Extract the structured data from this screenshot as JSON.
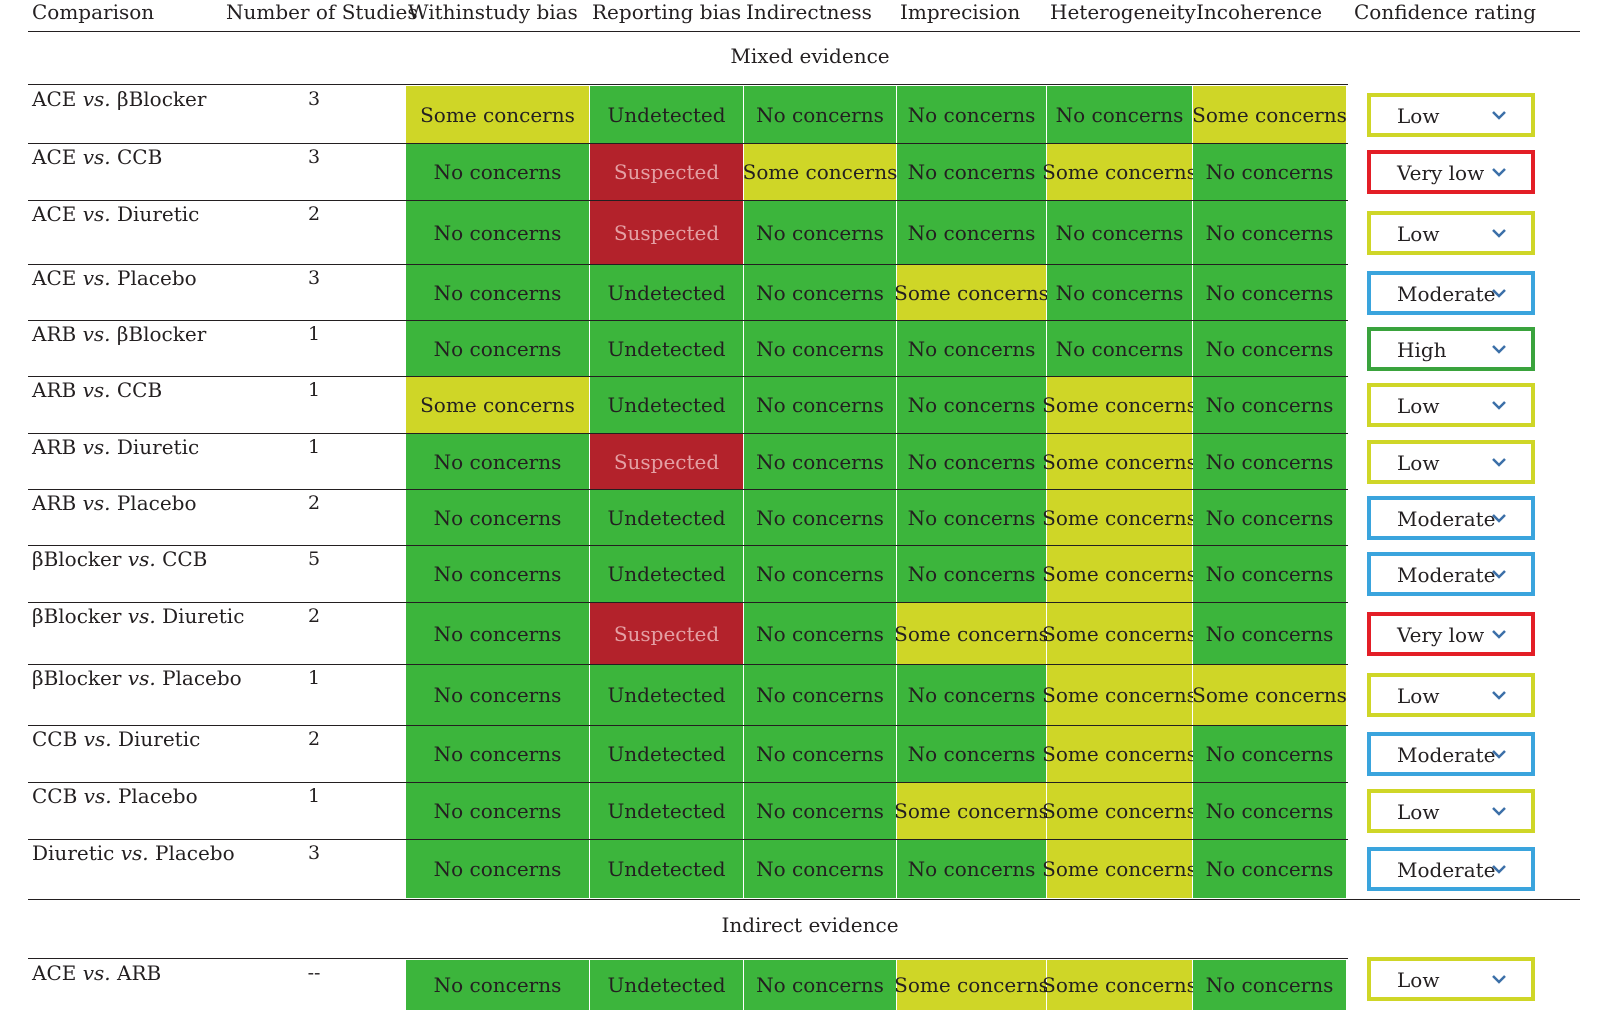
{
  "headers": {
    "comparison": "Comparison",
    "studies": "Number of Studies",
    "within": "Withinstudy bias",
    "reporting": "Reporting bias",
    "indirectness": "Indirectness",
    "imprecision": "Imprecision",
    "heterogeneity": "Heterogeneity",
    "incoherence": "Incoherence",
    "confidence": "Confidence rating"
  },
  "sections": {
    "mixed": "Mixed evidence",
    "indirect": "Indirect evidence"
  },
  "rows": [
    {
      "a": "ACE",
      "vs": "vs.",
      "b": "βBlocker",
      "n": "3",
      "cells": [
        [
          "Some concerns",
          "yellow"
        ],
        [
          "Undetected",
          "green"
        ],
        [
          "No concerns",
          "green"
        ],
        [
          "No concerns",
          "green"
        ],
        [
          "No concerns",
          "green"
        ],
        [
          "Some concerns",
          "yellow"
        ]
      ],
      "rating": "Low",
      "rating_color": "#cfd627"
    },
    {
      "a": "ACE",
      "vs": "vs.",
      "b": "CCB",
      "n": "3",
      "cells": [
        [
          "No concerns",
          "green"
        ],
        [
          "Suspected",
          "red"
        ],
        [
          "Some concerns",
          "yellow"
        ],
        [
          "No concerns",
          "green"
        ],
        [
          "Some concerns",
          "yellow"
        ],
        [
          "No concerns",
          "green"
        ]
      ],
      "rating": "Very low",
      "rating_color": "#e31e26"
    },
    {
      "a": "ACE",
      "vs": "vs.",
      "b": "Diuretic",
      "n": "2",
      "cells": [
        [
          "No concerns",
          "green"
        ],
        [
          "Suspected",
          "red"
        ],
        [
          "No concerns",
          "green"
        ],
        [
          "No concerns",
          "green"
        ],
        [
          "No concerns",
          "green"
        ],
        [
          "No concerns",
          "green"
        ]
      ],
      "rating": "Low",
      "rating_color": "#cfd627"
    },
    {
      "a": "ACE",
      "vs": "vs.",
      "b": "Placebo",
      "n": "3",
      "cells": [
        [
          "No concerns",
          "green"
        ],
        [
          "Undetected",
          "green"
        ],
        [
          "No concerns",
          "green"
        ],
        [
          "Some concerns",
          "yellow"
        ],
        [
          "No concerns",
          "green"
        ],
        [
          "No concerns",
          "green"
        ]
      ],
      "rating": "Moderate",
      "rating_color": "#3aa4dd"
    },
    {
      "a": "ARB",
      "vs": "vs.",
      "b": "βBlocker",
      "n": "1",
      "cells": [
        [
          "No concerns",
          "green"
        ],
        [
          "Undetected",
          "green"
        ],
        [
          "No concerns",
          "green"
        ],
        [
          "No concerns",
          "green"
        ],
        [
          "No concerns",
          "green"
        ],
        [
          "No concerns",
          "green"
        ]
      ],
      "rating": "High",
      "rating_color": "#3aa33d"
    },
    {
      "a": "ARB",
      "vs": "vs.",
      "b": "CCB",
      "n": "1",
      "cells": [
        [
          "Some concerns",
          "yellow"
        ],
        [
          "Undetected",
          "green"
        ],
        [
          "No concerns",
          "green"
        ],
        [
          "No concerns",
          "green"
        ],
        [
          "Some concerns",
          "yellow"
        ],
        [
          "No concerns",
          "green"
        ]
      ],
      "rating": "Low",
      "rating_color": "#cfd627"
    },
    {
      "a": "ARB",
      "vs": "vs.",
      "b": "Diuretic",
      "n": "1",
      "cells": [
        [
          "No concerns",
          "green"
        ],
        [
          "Suspected",
          "red"
        ],
        [
          "No concerns",
          "green"
        ],
        [
          "No concerns",
          "green"
        ],
        [
          "Some concerns",
          "yellow"
        ],
        [
          "No concerns",
          "green"
        ]
      ],
      "rating": "Low",
      "rating_color": "#cfd627"
    },
    {
      "a": "ARB",
      "vs": "vs.",
      "b": "Placebo",
      "n": "2",
      "cells": [
        [
          "No concerns",
          "green"
        ],
        [
          "Undetected",
          "green"
        ],
        [
          "No concerns",
          "green"
        ],
        [
          "No concerns",
          "green"
        ],
        [
          "Some concerns",
          "yellow"
        ],
        [
          "No concerns",
          "green"
        ]
      ],
      "rating": "Moderate",
      "rating_color": "#3aa4dd"
    },
    {
      "a": "βBlocker",
      "vs": "vs.",
      "b": "CCB",
      "n": "5",
      "cells": [
        [
          "No concerns",
          "green"
        ],
        [
          "Undetected",
          "green"
        ],
        [
          "No concerns",
          "green"
        ],
        [
          "No concerns",
          "green"
        ],
        [
          "Some concerns",
          "yellow"
        ],
        [
          "No concerns",
          "green"
        ]
      ],
      "rating": "Moderate",
      "rating_color": "#3aa4dd"
    },
    {
      "a": "βBlocker",
      "vs": "vs.",
      "b": "Diuretic",
      "n": "2",
      "cells": [
        [
          "No concerns",
          "green"
        ],
        [
          "Suspected",
          "red"
        ],
        [
          "No concerns",
          "green"
        ],
        [
          "Some concerns",
          "yellow"
        ],
        [
          "Some concerns",
          "yellow"
        ],
        [
          "No concerns",
          "green"
        ]
      ],
      "rating": "Very low",
      "rating_color": "#e31e26"
    },
    {
      "a": "βBlocker",
      "vs": "vs.",
      "b": "Placebo",
      "n": "1",
      "cells": [
        [
          "No concerns",
          "green"
        ],
        [
          "Undetected",
          "green"
        ],
        [
          "No concerns",
          "green"
        ],
        [
          "No concerns",
          "green"
        ],
        [
          "Some concerns",
          "yellow"
        ],
        [
          "Some concerns",
          "yellow"
        ]
      ],
      "rating": "Low",
      "rating_color": "#cfd627"
    },
    {
      "a": "CCB",
      "vs": "vs.",
      "b": "Diuretic",
      "n": "2",
      "cells": [
        [
          "No concerns",
          "green"
        ],
        [
          "Undetected",
          "green"
        ],
        [
          "No concerns",
          "green"
        ],
        [
          "No concerns",
          "green"
        ],
        [
          "Some concerns",
          "yellow"
        ],
        [
          "No concerns",
          "green"
        ]
      ],
      "rating": "Moderate",
      "rating_color": "#3aa4dd"
    },
    {
      "a": "CCB",
      "vs": "vs.",
      "b": "Placebo",
      "n": "1",
      "cells": [
        [
          "No concerns",
          "green"
        ],
        [
          "Undetected",
          "green"
        ],
        [
          "No concerns",
          "green"
        ],
        [
          "Some concerns",
          "yellow"
        ],
        [
          "Some concerns",
          "yellow"
        ],
        [
          "No concerns",
          "green"
        ]
      ],
      "rating": "Low",
      "rating_color": "#cfd627"
    },
    {
      "a": "Diuretic",
      "vs": "vs.",
      "b": "Placebo",
      "n": "3",
      "cells": [
        [
          "No concerns",
          "green"
        ],
        [
          "Undetected",
          "green"
        ],
        [
          "No concerns",
          "green"
        ],
        [
          "No concerns",
          "green"
        ],
        [
          "Some concerns",
          "yellow"
        ],
        [
          "No concerns",
          "green"
        ]
      ],
      "rating": "Moderate",
      "rating_color": "#3aa4dd"
    },
    {
      "a": "ACE",
      "vs": "vs.",
      "b": "ARB",
      "n": "--",
      "cells": [
        [
          "No concerns",
          "green"
        ],
        [
          "Undetected",
          "green"
        ],
        [
          "No concerns",
          "green"
        ],
        [
          "Some concerns",
          "yellow"
        ],
        [
          "Some concerns",
          "yellow"
        ],
        [
          "No concerns",
          "green"
        ]
      ],
      "rating": "Low",
      "rating_color": "#cfd627"
    }
  ],
  "colors": {
    "green": "#3cb53c",
    "yellow": "#cfd627",
    "red": "#b3222b",
    "chevron": "#3b6fa8"
  }
}
